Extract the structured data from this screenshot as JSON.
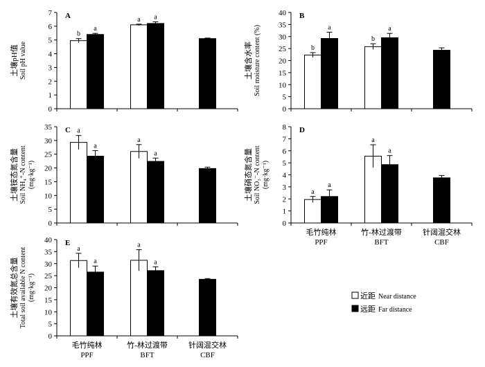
{
  "figure": {
    "categories_cn": [
      "毛竹纯林",
      "竹-林过渡带",
      "针阔混交林"
    ],
    "categories_en": [
      "PPF",
      "BFT",
      "CBF"
    ],
    "legend": {
      "near_cn": "近距",
      "near_en": "Near distance",
      "far_cn": "远距",
      "far_en": "Far distance"
    }
  },
  "chart_data": [
    {
      "type": "bar",
      "panel": "A",
      "title": "",
      "ylabel_cn": "土壤pH值",
      "ylabel_en": "Soil pH value",
      "ylim": [
        0,
        7
      ],
      "yticks": [
        "0",
        "1",
        "2",
        "3",
        "4",
        "5",
        "6",
        "7"
      ],
      "categories": [
        "PPF",
        "BFT",
        "CBF"
      ],
      "series": [
        {
          "name": "Near distance",
          "values": [
            4.95,
            6.1,
            null
          ],
          "errors": [
            0.15,
            0.05,
            null
          ],
          "letters": [
            "b",
            "a",
            ""
          ]
        },
        {
          "name": "Far distance",
          "values": [
            5.4,
            6.2,
            5.1
          ],
          "errors": [
            0.08,
            0.12,
            0.04
          ],
          "letters": [
            "a",
            "a",
            ""
          ]
        }
      ]
    },
    {
      "type": "bar",
      "panel": "B",
      "title": "",
      "ylabel_cn": "土壤含水率",
      "ylabel_en": "Soil moisture content (%)",
      "ylim": [
        0,
        40
      ],
      "yticks": [
        "0",
        "5",
        "10",
        "15",
        "20",
        "25",
        "30",
        "35",
        "40"
      ],
      "categories": [
        "PPF",
        "BFT",
        "CBF"
      ],
      "series": [
        {
          "name": "Near distance",
          "values": [
            22.3,
            25.8,
            null
          ],
          "errors": [
            1.0,
            1.2,
            null
          ],
          "letters": [
            "b",
            "b",
            ""
          ]
        },
        {
          "name": "Far distance",
          "values": [
            29.2,
            29.5,
            24.3
          ],
          "errors": [
            2.6,
            1.8,
            1.0
          ],
          "letters": [
            "a",
            "a",
            ""
          ]
        }
      ]
    },
    {
      "type": "bar",
      "panel": "C",
      "title": "",
      "ylabel_cn": "土壤铵态氮含量",
      "ylabel_en": "Soil NH₄⁺-N content",
      "ylabel_unit": "(mg·kg⁻¹)",
      "ylim": [
        0,
        35
      ],
      "yticks": [
        "0",
        "5",
        "10",
        "15",
        "20",
        "25",
        "30",
        "35"
      ],
      "categories": [
        "PPF",
        "BFT",
        "CBF"
      ],
      "series": [
        {
          "name": "Near distance",
          "values": [
            29.3,
            26.0,
            null
          ],
          "errors": [
            2.5,
            2.5,
            null
          ],
          "letters": [
            "a",
            "a",
            ""
          ]
        },
        {
          "name": "Far distance",
          "values": [
            24.3,
            22.4,
            19.8
          ],
          "errors": [
            2.0,
            1.2,
            0.5
          ],
          "letters": [
            "a",
            "a",
            ""
          ]
        }
      ]
    },
    {
      "type": "bar",
      "panel": "D",
      "title": "",
      "ylabel_cn": "土壤硝态氮含量",
      "ylabel_en": "Soil NO₃⁻-N content",
      "ylabel_unit": "(mg·kg⁻¹)",
      "ylim": [
        0,
        8
      ],
      "yticks": [
        "0",
        "1",
        "2",
        "3",
        "4",
        "5",
        "6",
        "7",
        "8"
      ],
      "categories": [
        "PPF",
        "BFT",
        "CBF"
      ],
      "series": [
        {
          "name": "Near distance",
          "values": [
            1.95,
            5.55,
            null
          ],
          "errors": [
            0.25,
            0.95,
            null
          ],
          "letters": [
            "a",
            "a",
            ""
          ]
        },
        {
          "name": "Far distance",
          "values": [
            2.2,
            4.85,
            3.75
          ],
          "errors": [
            0.55,
            0.75,
            0.2
          ],
          "letters": [
            "a",
            "a",
            ""
          ]
        }
      ]
    },
    {
      "type": "bar",
      "panel": "E",
      "title": "",
      "ylabel_cn": "土壤有效氮总含量",
      "ylabel_en": "Total soil available N content",
      "ylabel_unit": "(mg·kg⁻¹)",
      "ylim": [
        0,
        40
      ],
      "yticks": [
        "0",
        "5",
        "10",
        "15",
        "20",
        "25",
        "30",
        "35",
        "40"
      ],
      "categories": [
        "PPF",
        "BFT",
        "CBF"
      ],
      "series": [
        {
          "name": "Near distance",
          "values": [
            31.3,
            31.4,
            null
          ],
          "errors": [
            3.0,
            4.4,
            null
          ],
          "letters": [
            "a",
            "a",
            ""
          ]
        },
        {
          "name": "Far distance",
          "values": [
            26.5,
            27.1,
            23.5
          ],
          "errors": [
            2.5,
            1.6,
            0.3
          ],
          "letters": [
            "a",
            "a",
            ""
          ]
        }
      ]
    }
  ]
}
